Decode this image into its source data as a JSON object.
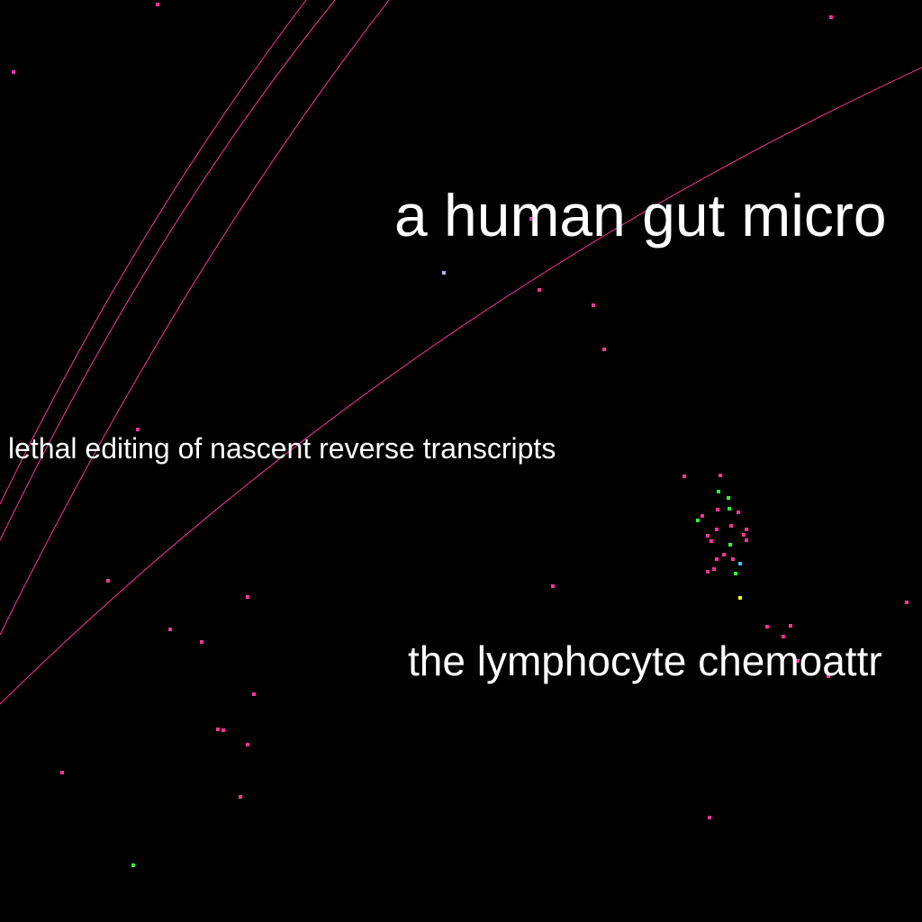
{
  "labels": {
    "gut": "a human gut micro",
    "lethal": "lethal editing of nascent reverse transcripts",
    "lymph": "the lymphocyte chemoattr"
  },
  "colors": {
    "background": "#000000",
    "text": "#ffffff",
    "line": "#ff3399",
    "point_pink": "#ff3399",
    "point_green": "#33ff33",
    "point_cyan": "#33ccff",
    "point_yellow": "#ffff00",
    "point_lavender": "#b3b3ff"
  }
}
